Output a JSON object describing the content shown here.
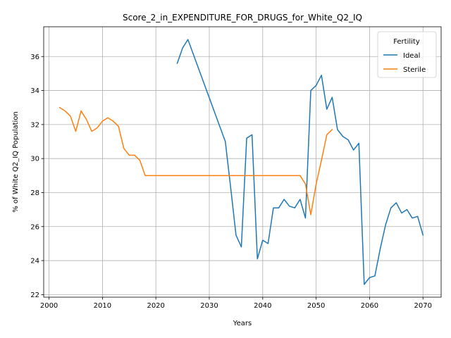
{
  "chart_data": {
    "type": "line",
    "title": "Score_2_in_EXPENDITURE_FOR_DRUGS_for_White_Q2_IQ",
    "xlabel": "Years",
    "ylabel": "% of White Q2_IQ Population",
    "xlim": [
      1999,
      2073.4
    ],
    "ylim": [
      21.85,
      37.75
    ],
    "xticks": [
      2000,
      2010,
      2020,
      2030,
      2040,
      2050,
      2060,
      2070
    ],
    "yticks": [
      22,
      24,
      26,
      28,
      30,
      32,
      34,
      36
    ],
    "grid": true,
    "legend": {
      "title": "Fertility",
      "placement": "top-right"
    },
    "series": [
      {
        "name": "Ideal",
        "color": "#1f77b4",
        "x": [
          2024,
          2025,
          2026,
          2033,
          2034,
          2035,
          2036,
          2037,
          2038,
          2039,
          2040,
          2041,
          2042,
          2043,
          2044,
          2045,
          2046,
          2047,
          2048,
          2049,
          2050,
          2051,
          2052,
          2053,
          2054,
          2055,
          2056,
          2057,
          2058,
          2059,
          2060,
          2061,
          2062,
          2063,
          2064,
          2065,
          2066,
          2067,
          2068,
          2069,
          2070
        ],
        "y": [
          35.6,
          36.5,
          37.0,
          31.0,
          28.3,
          25.5,
          24.8,
          31.2,
          31.4,
          24.1,
          25.2,
          25.0,
          27.1,
          27.1,
          27.6,
          27.2,
          27.1,
          27.6,
          26.5,
          34.0,
          34.3,
          34.9,
          32.9,
          33.6,
          31.7,
          31.3,
          31.1,
          30.5,
          30.9,
          22.6,
          23.0,
          23.1,
          24.7,
          26.1,
          27.1,
          27.4,
          26.8,
          27.0,
          26.5,
          26.6,
          25.5
        ]
      },
      {
        "name": "Sterile",
        "color": "#ff7f0e",
        "x": [
          2002,
          2003,
          2004,
          2005,
          2006,
          2007,
          2008,
          2009,
          2010,
          2011,
          2012,
          2013,
          2014,
          2015,
          2016,
          2017,
          2018,
          2019,
          2047,
          2048,
          2049,
          2050,
          2051,
          2052,
          2053
        ],
        "y": [
          33.0,
          32.8,
          32.5,
          31.6,
          32.8,
          32.3,
          31.6,
          31.8,
          32.2,
          32.4,
          32.2,
          31.9,
          30.6,
          30.2,
          30.2,
          29.9,
          29.0,
          29.0,
          29.0,
          28.5,
          26.7,
          28.5,
          29.9,
          31.4,
          31.7
        ]
      }
    ]
  }
}
